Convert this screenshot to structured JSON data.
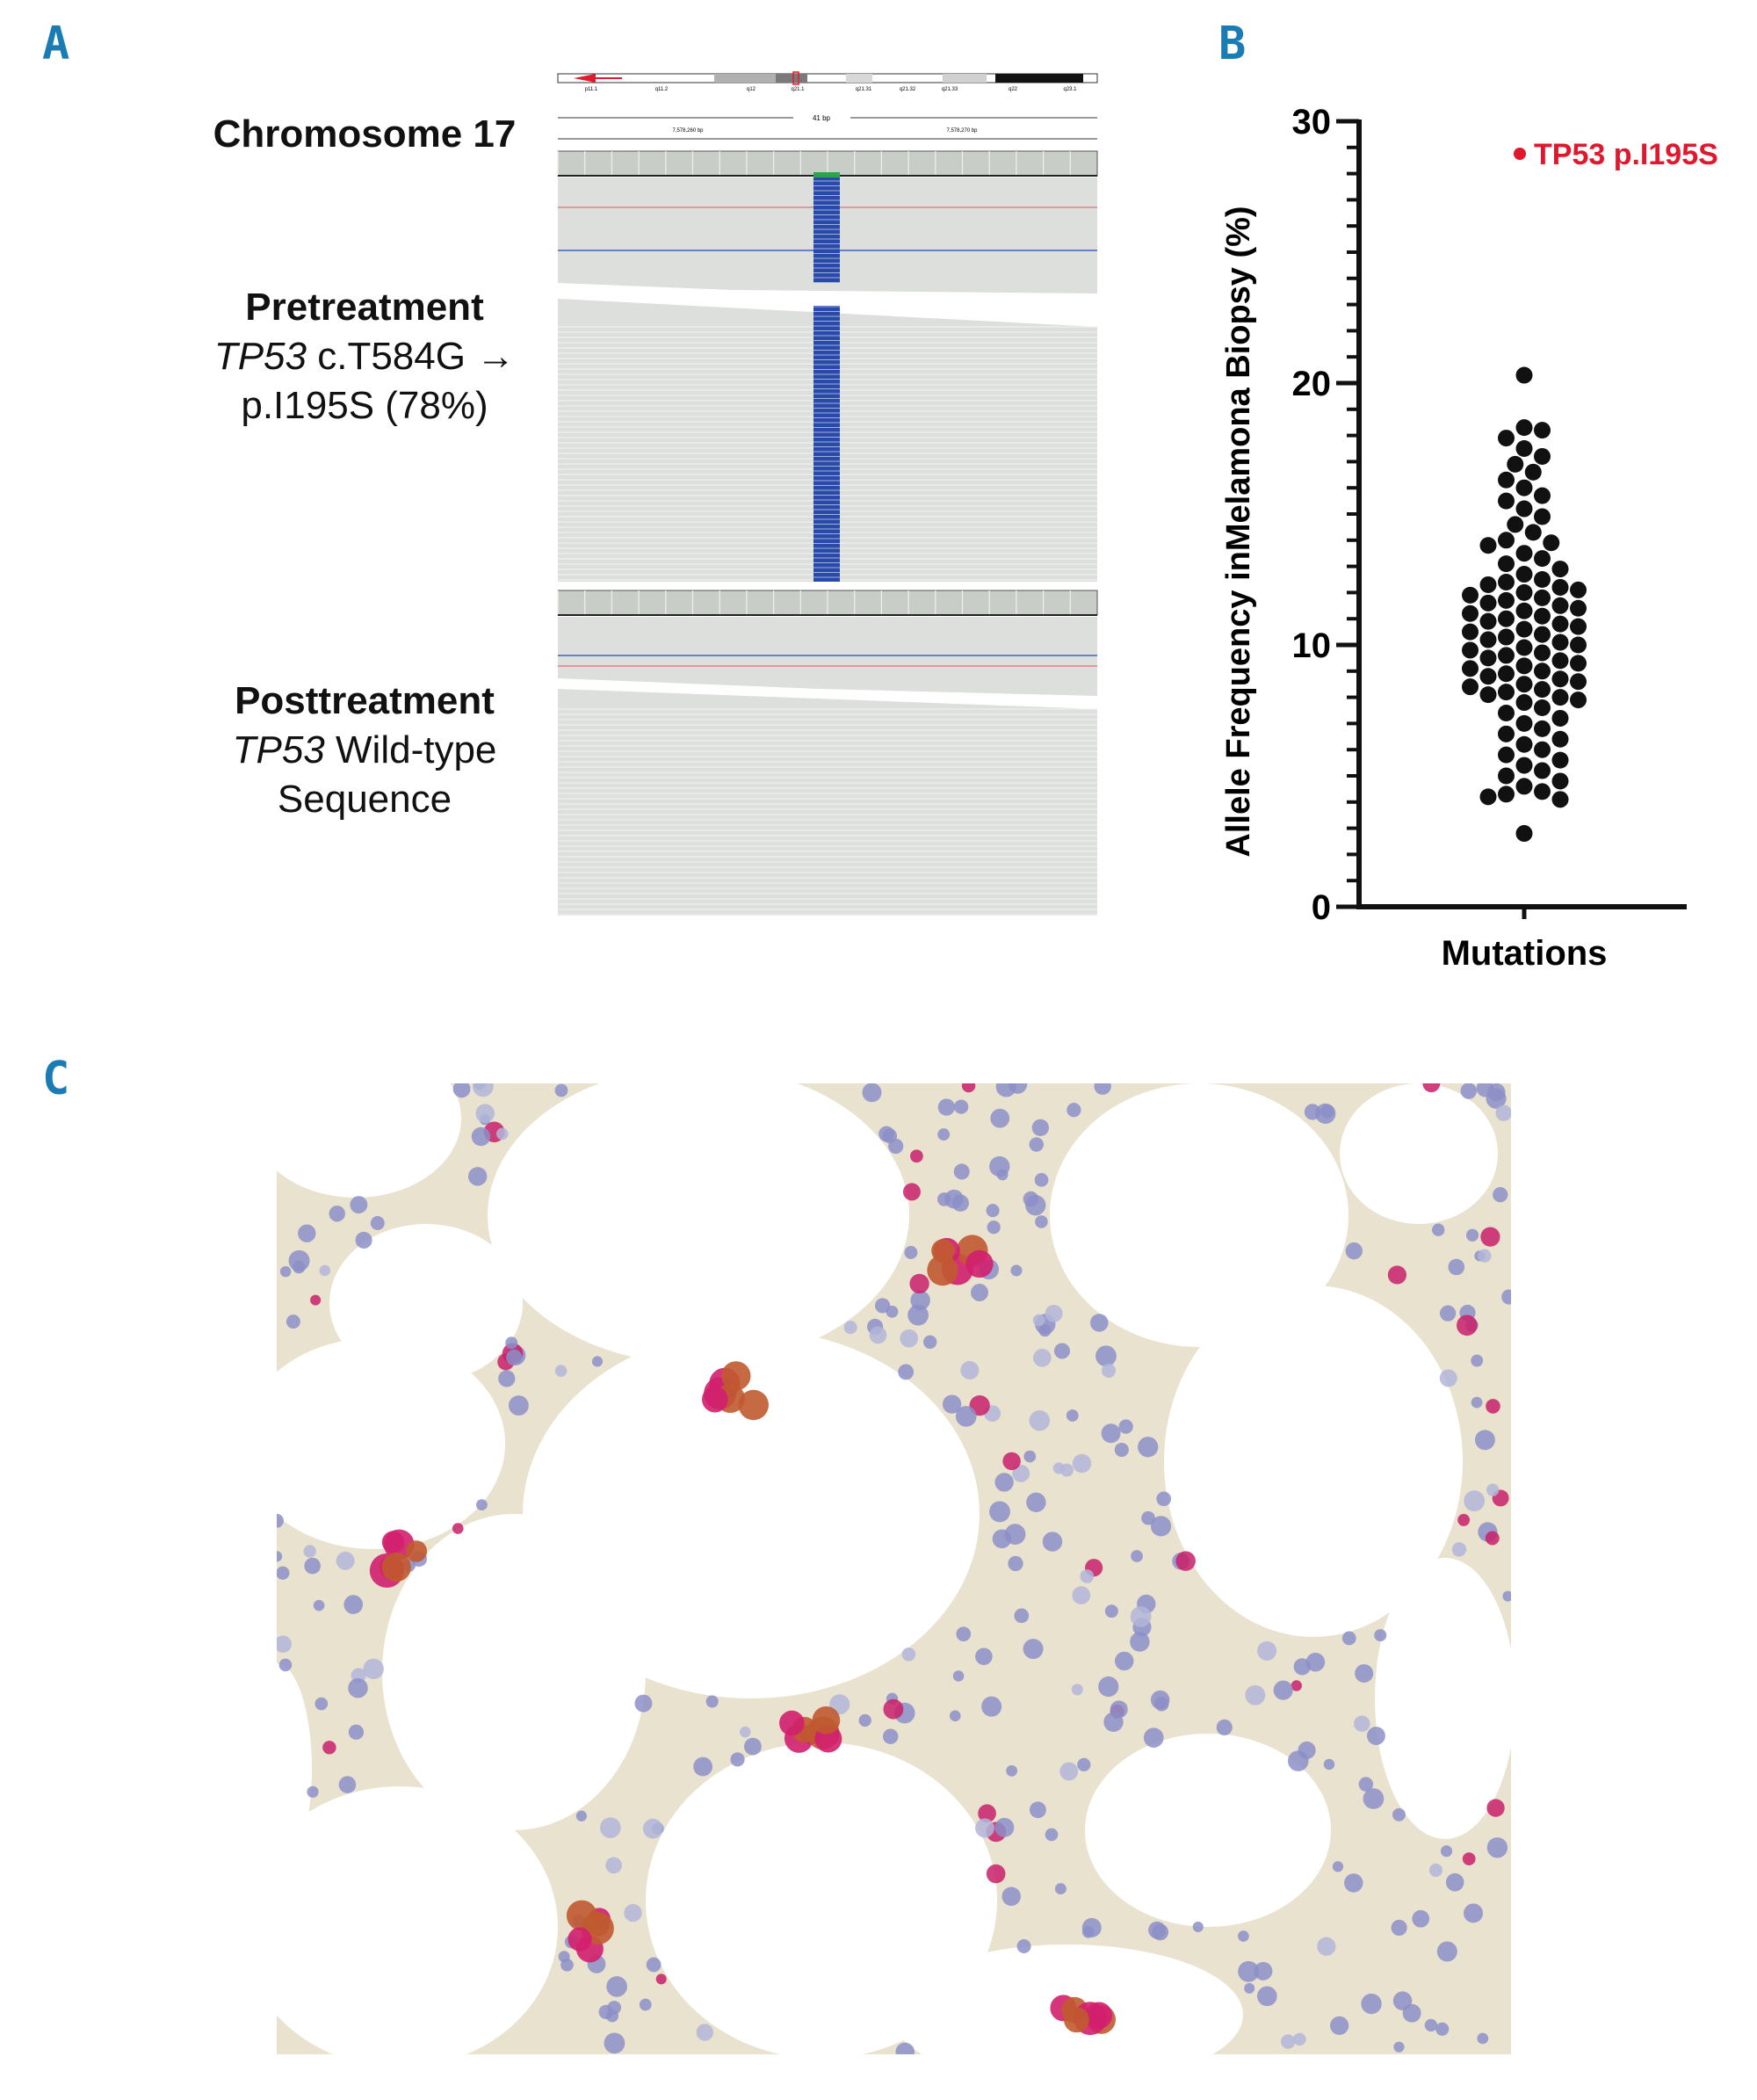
{
  "panels": {
    "a": "A",
    "b": "B",
    "c": "C"
  },
  "panel_a": {
    "chromosome_label": "Chromosome 17",
    "ideogram_bands": [
      "p11.1",
      "q11.2",
      "q12",
      "q21.1",
      "q21.31",
      "q21.32",
      "q21.33",
      "q22",
      "q23.1"
    ],
    "window_size": "41 bp",
    "coord_left": "7,578,260 bp",
    "coord_right": "7,578,270 bp",
    "pre": {
      "title": "Pretreatment",
      "gene": "TP53",
      "change": "c.T584G →",
      "protein": "p.I195S (78%)"
    },
    "post": {
      "title": "Posttreatment",
      "gene": "TP53",
      "desc": "Wild-type",
      "line2": "Sequence"
    },
    "colors": {
      "mismatch": "#2a4aa8",
      "read": "#dcdfdb",
      "ref_line_red": "#e05060",
      "ref_line_blue": "#4060c0"
    }
  },
  "chart_data": {
    "type": "scatter",
    "title": "",
    "xlabel": "",
    "ylabel": "Allele Frequency inMelamona Biopsy (%)",
    "categories": [
      "Mutations"
    ],
    "ylim": [
      0,
      30
    ],
    "yticks": [
      0,
      10,
      20,
      30
    ],
    "legend": {
      "label": "TP53 p.I195S",
      "color": "#e0182d",
      "position": "top-right"
    },
    "point_color": "#111111",
    "values": [
      20.3,
      18.3,
      18.2,
      17.9,
      17.5,
      17.2,
      16.9,
      16.6,
      16.3,
      16.0,
      15.7,
      15.5,
      15.2,
      14.9,
      14.6,
      14.3,
      14.0,
      13.9,
      13.8,
      13.5,
      13.3,
      13.1,
      12.9,
      12.7,
      12.5,
      12.4,
      12.3,
      12.2,
      12.1,
      12.0,
      11.9,
      11.8,
      11.7,
      11.6,
      11.5,
      11.4,
      11.3,
      11.2,
      11.1,
      11.0,
      10.9,
      10.8,
      10.7,
      10.6,
      10.5,
      10.4,
      10.3,
      10.2,
      10.1,
      10.0,
      9.9,
      9.8,
      9.7,
      9.6,
      9.5,
      9.4,
      9.3,
      9.2,
      9.1,
      9.0,
      8.9,
      8.8,
      8.7,
      8.6,
      8.5,
      8.4,
      8.3,
      8.2,
      8.1,
      8.0,
      7.9,
      7.8,
      7.6,
      7.4,
      7.2,
      7.0,
      6.8,
      6.6,
      6.4,
      6.2,
      6.0,
      5.8,
      5.6,
      5.4,
      5.2,
      5.0,
      4.8,
      4.6,
      4.4,
      4.3,
      4.2,
      4.1,
      2.8
    ]
  },
  "panel_c": {
    "image": "bone-marrow-immunohistochemistry"
  }
}
